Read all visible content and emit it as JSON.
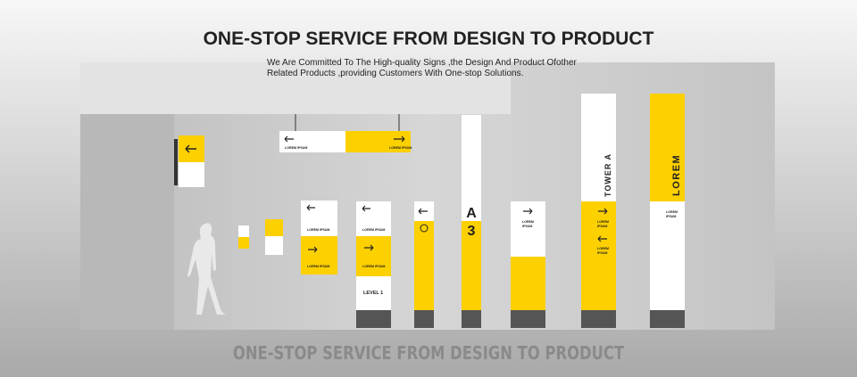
{
  "header": {
    "title": "ONE-STOP SERVICE FROM DESIGN TO PRODUCT",
    "subtitle_lines": [
      "We Are Committed To The High-quality Signs ,the Design And Product Ofother",
      "Related Products ,providing Customers With One-stop Solutions."
    ]
  },
  "signs": {
    "hanging": [
      "LOREM IPSUM",
      "LOREM IPSUM"
    ],
    "panel": [
      "LOREM IPSUM",
      "LOREM IPSUM"
    ],
    "level_post": [
      "LOREM IPSUM",
      "LOREM IPSUM",
      "LEVEL 1"
    ],
    "letter_post": [
      "A",
      "3"
    ],
    "short_post": [
      "LOREM",
      "IPSUM"
    ],
    "tower": [
      "TOWER A",
      "LOREM",
      "IPSUM",
      "LOREM",
      "IPSUM"
    ],
    "totem": [
      "LOREM",
      "LOREM",
      "IPSUM"
    ]
  },
  "footer": {
    "text": "ONE-STOP SERVICE FROM DESIGN TO PRODUCT"
  }
}
